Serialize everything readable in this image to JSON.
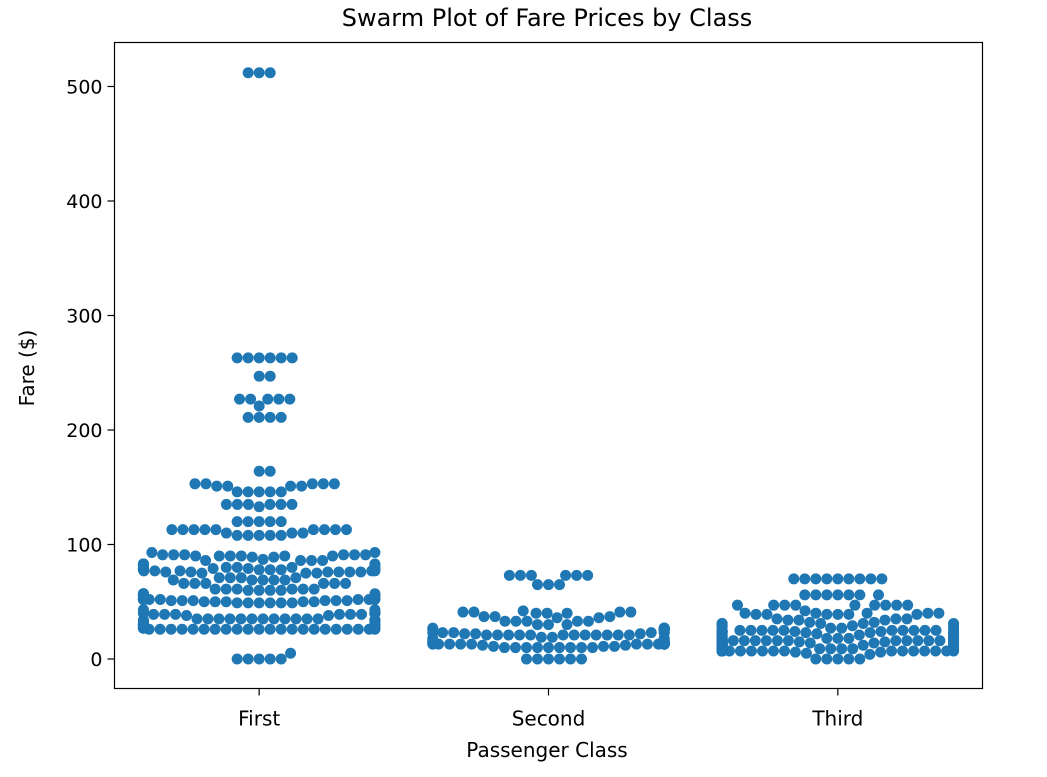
{
  "chart_data": {
    "type": "scatter",
    "subtype": "swarm",
    "title": "Swarm Plot of Fare Prices by Class",
    "xlabel": "Passenger Class",
    "ylabel": "Fare ($)",
    "categories": [
      "First",
      "Second",
      "Third"
    ],
    "ylim": [
      -25,
      540
    ],
    "yticks": [
      0,
      100,
      200,
      300,
      400,
      500
    ],
    "grid": false,
    "legend": "none",
    "marker_color": "#1f77b4",
    "series": [
      {
        "category": "First",
        "values": [
          512,
          512,
          512,
          263,
          263,
          263,
          263,
          263,
          263,
          247,
          247,
          227,
          227,
          227,
          227,
          227,
          221,
          211,
          211,
          211,
          211,
          164,
          164,
          153,
          153,
          153,
          153,
          153,
          151,
          151,
          151,
          151,
          146,
          146,
          146,
          146,
          146,
          135,
          135,
          135,
          135,
          135,
          135,
          133,
          120,
          120,
          120,
          120,
          120,
          113,
          113,
          113,
          113,
          113,
          113,
          113,
          113,
          113,
          110,
          110,
          110,
          108,
          108,
          108,
          108,
          108,
          93,
          93,
          91,
          91,
          91,
          91,
          91,
          91,
          90,
          90,
          90,
          90,
          90,
          90,
          89,
          89,
          87,
          86,
          86,
          86,
          86,
          83,
          83,
          83,
          83,
          83,
          82,
          82,
          82,
          82,
          82,
          82,
          82,
          82,
          80,
          80,
          80,
          80,
          80,
          79,
          79,
          79,
          79,
          79,
          79,
          79,
          79,
          78,
          78,
          78,
          78,
          78,
          78,
          78,
          78,
          77,
          77,
          77,
          77,
          77,
          76,
          76,
          76,
          76,
          76,
          76,
          75,
          75,
          75,
          71,
          71,
          71,
          71,
          69,
          69,
          69,
          69,
          69,
          66,
          66,
          66,
          66,
          66,
          66,
          61,
          61,
          61,
          61,
          61,
          61,
          60,
          60,
          60,
          60,
          57,
          57,
          57,
          57,
          57,
          56,
          56,
          56,
          56,
          56,
          56,
          55,
          55,
          55,
          55,
          55,
          55,
          53,
          53,
          53,
          53,
          53,
          53,
          52,
          52,
          52,
          52,
          52,
          52,
          52,
          52,
          52,
          52,
          52,
          52,
          51,
          51,
          51,
          51,
          51,
          51,
          50,
          50,
          50,
          50,
          50,
          49,
          49,
          49,
          49,
          49,
          49,
          43,
          43,
          41,
          41,
          40,
          40,
          40,
          40,
          40,
          39,
          39,
          39,
          39,
          39,
          39,
          38,
          38,
          35,
          35,
          35,
          35,
          35,
          35,
          35,
          35,
          35,
          35,
          35,
          35,
          34,
          34,
          34,
          34,
          34,
          33,
          31,
          31,
          31,
          31,
          31,
          30,
          30,
          30,
          30,
          30,
          30,
          30,
          30,
          30,
          29,
          29,
          29,
          29,
          28,
          28,
          28,
          28,
          27,
          27,
          27,
          27,
          27,
          27,
          27,
          27,
          26,
          26,
          26,
          26,
          26,
          26,
          26,
          26,
          26,
          26,
          26,
          26,
          26,
          26,
          26,
          26,
          26,
          26,
          26,
          26,
          26,
          26,
          5,
          0,
          0,
          0,
          0,
          0
        ]
      },
      {
        "category": "Second",
        "values": [
          73,
          73,
          73,
          73,
          73,
          73,
          65,
          65,
          65,
          42,
          41,
          41,
          41,
          41,
          40,
          40,
          40,
          37,
          37,
          37,
          36,
          36,
          33,
          33,
          33,
          33,
          33,
          30,
          30,
          30,
          27,
          27,
          27,
          27,
          27,
          26,
          26,
          26,
          26,
          26,
          26,
          26,
          26,
          26,
          26,
          26,
          26,
          26,
          26,
          26,
          26,
          26,
          26,
          26,
          26,
          26,
          26,
          26,
          26,
          23,
          23,
          23,
          23,
          23,
          23,
          22,
          22,
          22,
          21,
          21,
          21,
          21,
          21,
          21,
          21,
          21,
          21,
          21,
          21,
          21,
          19,
          19,
          18,
          18,
          18,
          16,
          16,
          15,
          15,
          15,
          15,
          15,
          14,
          14,
          14,
          14,
          13,
          13,
          13,
          13,
          13,
          13,
          13,
          13,
          13,
          13,
          13,
          13,
          13,
          13,
          13,
          13,
          13,
          13,
          13,
          13,
          13,
          13,
          13,
          13,
          13,
          13,
          13,
          13,
          13,
          12,
          12,
          11,
          11,
          11,
          10,
          10,
          10,
          10,
          10,
          10,
          10,
          10,
          10,
          0,
          0,
          0,
          0,
          0,
          0
        ]
      },
      {
        "category": "Third",
        "values": [
          70,
          70,
          70,
          70,
          70,
          70,
          70,
          70,
          70,
          56,
          56,
          56,
          56,
          56,
          56,
          56,
          47,
          47,
          47,
          47,
          47,
          47,
          47,
          47,
          47,
          42,
          40,
          40,
          40,
          40,
          40,
          39,
          39,
          39,
          39,
          39,
          39,
          35,
          35,
          35,
          34,
          34,
          34,
          32,
          32,
          31,
          31,
          31,
          31,
          31,
          29,
          29,
          29,
          29,
          29,
          29,
          29,
          29,
          29,
          29,
          27,
          27,
          27,
          26,
          25,
          25,
          25,
          25,
          25,
          25,
          25,
          25,
          25,
          25,
          24,
          24,
          24,
          24,
          24,
          24,
          24,
          24,
          24,
          24,
          24,
          24,
          24,
          24,
          24,
          24,
          24,
          23,
          23,
          23,
          23,
          23,
          22,
          22,
          22,
          22,
          21,
          21,
          21,
          21,
          20,
          20,
          20,
          20,
          19,
          19,
          19,
          19,
          19,
          19,
          18,
          18,
          18,
          18,
          18,
          17,
          17,
          17,
          17,
          17,
          17,
          17,
          17,
          17,
          17,
          17,
          17,
          17,
          16,
          16,
          16,
          16,
          16,
          16,
          16,
          16,
          16,
          16,
          16,
          16,
          16,
          16,
          16,
          16,
          16,
          16,
          16,
          16,
          15,
          15,
          15,
          15,
          15,
          15,
          15,
          15,
          15,
          15,
          15,
          15,
          15,
          15,
          15,
          15,
          15,
          15,
          15,
          15,
          15,
          15,
          15,
          15,
          15,
          15,
          14,
          14,
          14,
          14,
          14,
          14,
          14,
          14,
          14,
          14,
          14,
          14,
          14,
          14,
          14,
          14,
          14,
          14,
          14,
          14,
          14,
          14,
          14,
          14,
          14,
          14,
          14,
          14,
          14,
          14,
          13,
          13,
          13,
          13,
          13,
          13,
          13,
          13,
          12,
          12,
          12,
          12,
          12,
          12,
          12,
          12,
          11,
          11,
          11,
          11,
          11,
          11,
          11,
          10,
          10,
          10,
          10,
          10,
          10,
          10,
          10,
          10,
          10,
          10,
          9,
          9,
          9,
          9,
          9,
          9,
          9,
          9,
          9,
          9,
          9,
          9,
          9,
          9,
          9,
          9,
          9,
          9,
          9,
          9,
          9,
          9,
          9,
          9,
          9,
          9,
          9,
          9,
          9,
          9,
          9,
          8,
          8,
          8,
          8,
          8,
          8,
          8,
          8,
          8,
          8,
          8,
          8,
          8,
          8,
          8,
          8,
          8,
          8,
          8,
          8,
          8,
          8,
          8,
          8,
          8,
          8,
          8,
          8,
          8,
          8,
          8,
          8,
          8,
          8,
          8,
          8,
          8,
          8,
          8,
          8,
          8,
          8,
          8,
          8,
          8,
          8,
          8,
          8,
          8,
          8,
          8,
          8,
          8,
          8,
          8,
          8,
          8,
          8,
          8,
          8,
          8,
          8,
          8,
          8,
          8,
          8,
          8,
          8,
          8,
          8,
          8,
          8,
          8,
          8,
          8,
          8,
          8,
          8,
          8,
          8,
          8,
          8,
          8,
          8,
          8,
          8,
          8,
          8,
          7,
          7,
          7,
          7,
          7,
          7,
          7,
          7,
          7,
          7,
          7,
          7,
          7,
          7,
          7,
          7,
          7,
          7,
          7,
          7,
          7,
          7,
          7,
          7,
          7,
          7,
          7,
          7,
          7,
          7,
          7,
          7,
          7,
          7,
          7,
          7,
          7,
          7,
          7,
          7,
          7,
          7,
          7,
          7,
          7,
          7,
          7,
          7,
          7,
          7,
          7,
          7,
          7,
          7,
          7,
          7,
          7,
          7,
          7,
          7,
          7,
          7,
          7,
          7,
          7,
          7,
          7,
          7,
          7,
          7,
          7,
          7,
          7,
          7,
          7,
          7,
          7,
          7,
          7,
          6,
          6,
          5,
          4,
          0,
          0,
          0,
          0,
          0
        ]
      }
    ]
  }
}
